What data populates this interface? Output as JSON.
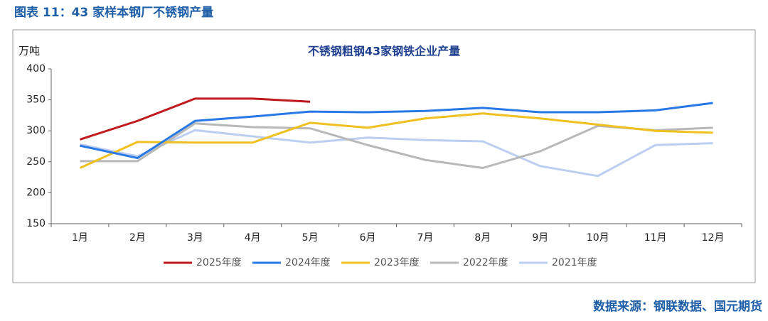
{
  "header": {
    "title": "图表 11：43 家样本钢厂不锈钢产量"
  },
  "chart_data": {
    "type": "line",
    "title": "不锈钢粗钢43家钢铁企业产量",
    "y_label": "万吨",
    "categories": [
      "1月",
      "2月",
      "3月",
      "4月",
      "5月",
      "6月",
      "7月",
      "8月",
      "9月",
      "10月",
      "11月",
      "12月"
    ],
    "ylim": [
      150,
      400
    ],
    "yticks": [
      150,
      200,
      250,
      300,
      350,
      400
    ],
    "legend": "bottom",
    "series": [
      {
        "name": "2025年度",
        "color": "#c0191e",
        "values": [
          286,
          316,
          352,
          352,
          347,
          null,
          null,
          null,
          null,
          null,
          null,
          null
        ]
      },
      {
        "name": "2024年度",
        "color": "#2878e6",
        "values": [
          276,
          256,
          316,
          323,
          331,
          330,
          332,
          337,
          330,
          330,
          333,
          345
        ]
      },
      {
        "name": "2023年度",
        "color": "#f0c020",
        "values": [
          240,
          282,
          281,
          281,
          313,
          305,
          320,
          328,
          320,
          310,
          300,
          297
        ]
      },
      {
        "name": "2022年度",
        "color": "#b8b8b8",
        "values": [
          251,
          251,
          312,
          306,
          304,
          277,
          253,
          240,
          267,
          308,
          301,
          305
        ]
      },
      {
        "name": "2021年度",
        "color": "#bccff0",
        "values": [
          278,
          259,
          301,
          291,
          281,
          289,
          285,
          283,
          243,
          227,
          277,
          280
        ]
      }
    ]
  },
  "source": "数据来源：钢联数据、国元期货"
}
